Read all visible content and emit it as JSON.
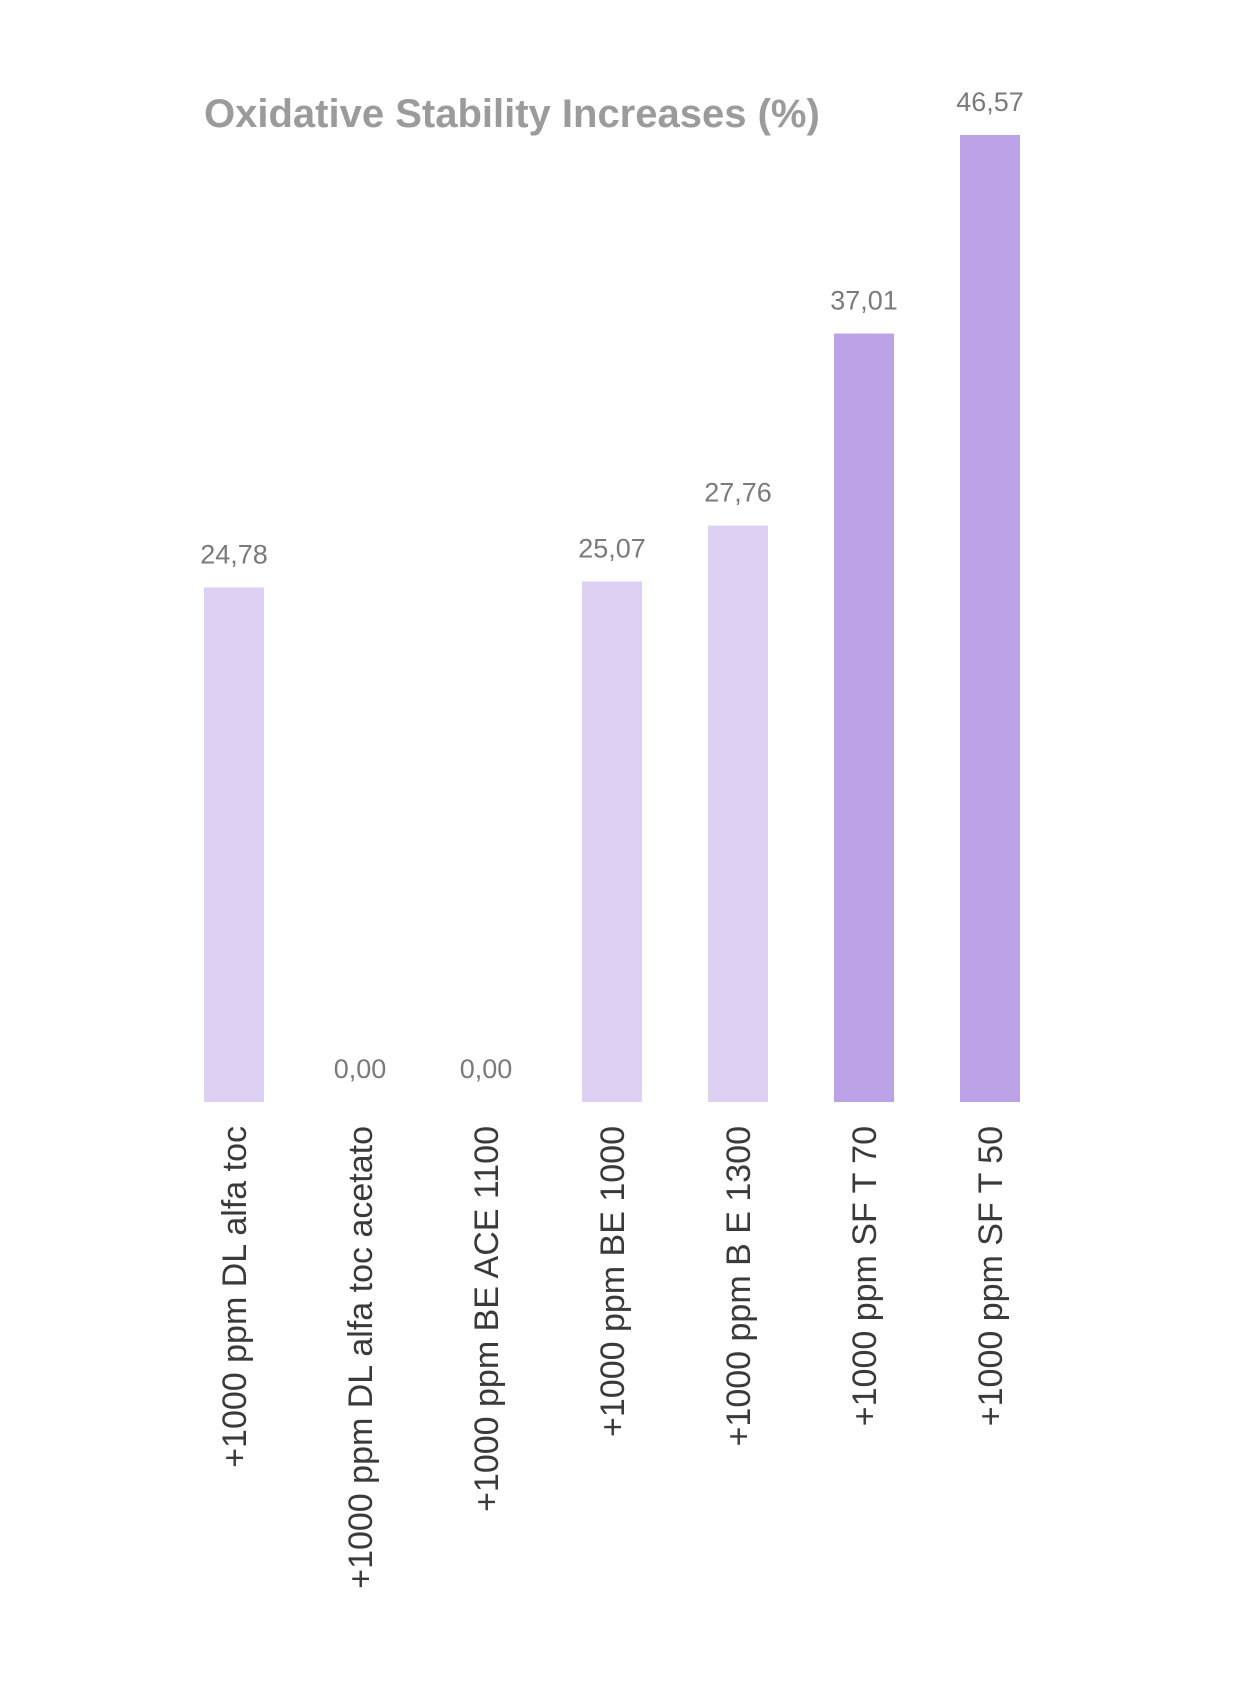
{
  "chart_data": {
    "type": "bar",
    "title": "Oxidative Stability Increases (%)",
    "categories": [
      "+1000 ppm DL alfa toc",
      "+1000 ppm DL alfa toc acetato",
      "+1000 ppm BE ACE 1100",
      "+1000 ppm BE 1000",
      "+1000 ppm B E 1300",
      "+1000 ppm SF T 70",
      "+1000 ppm SF T 50"
    ],
    "values": [
      24.78,
      0.0,
      0.0,
      25.07,
      27.76,
      37.01,
      46.57
    ],
    "value_labels": [
      "24,78",
      "0,00",
      "0,00",
      "25,07",
      "27,76",
      "37,01",
      "46,57"
    ],
    "bar_colors": [
      "#ded0f2",
      "#ded0f2",
      "#ded0f2",
      "#ded0f2",
      "#ded0f2",
      "#bba2e6",
      "#bba2e6"
    ],
    "xlabel": "",
    "ylabel": "",
    "ylim": [
      0,
      46.57
    ],
    "grid": false,
    "legend": "none"
  }
}
